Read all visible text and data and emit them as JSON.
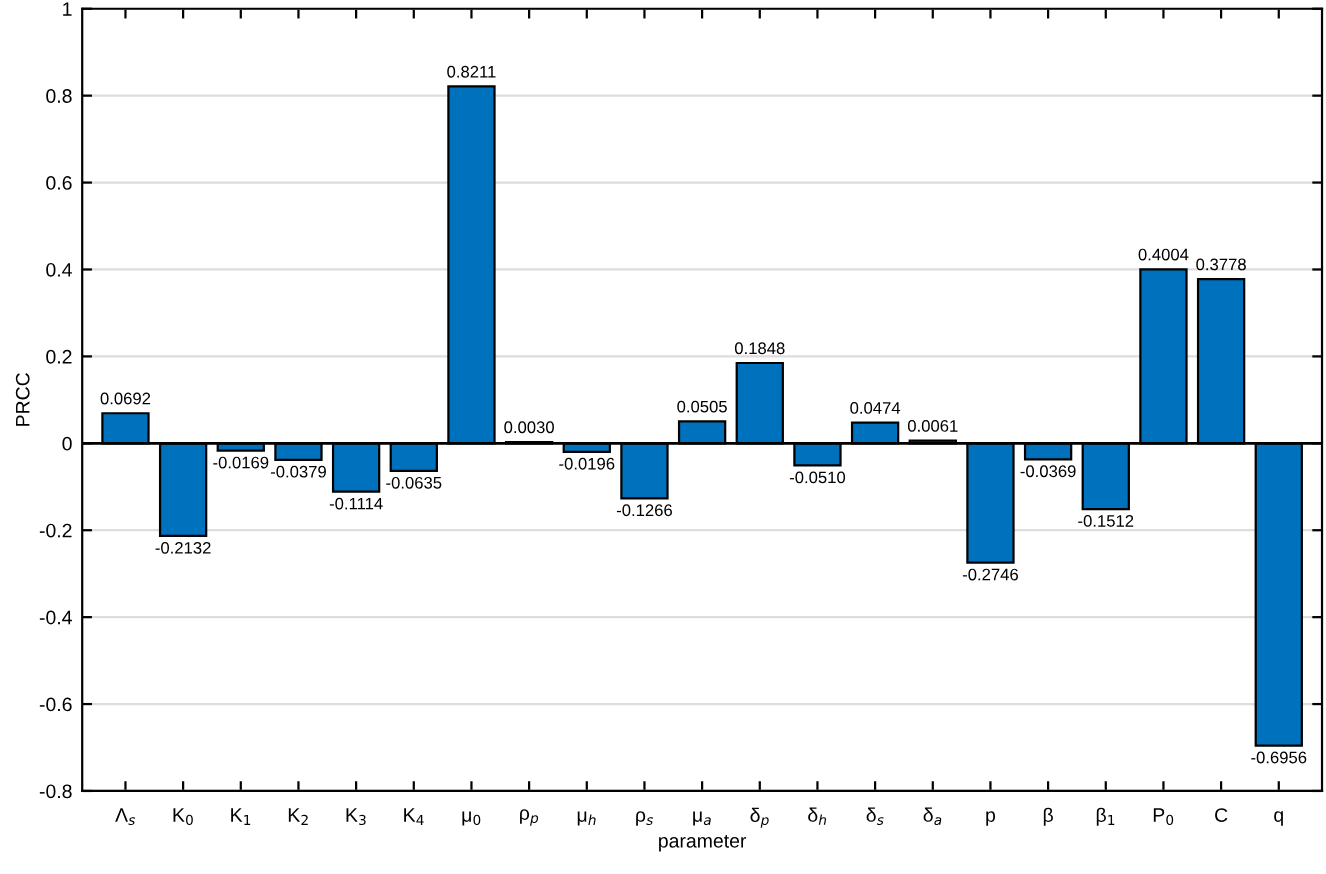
{
  "chart_data": {
    "type": "bar",
    "xlabel": "parameter",
    "ylabel": "PRCC",
    "categories": [
      "Λ$_{s}$",
      "K$_{0}$",
      "K$_{1}$",
      "K$_{2}$",
      "K$_{3}$",
      "K$_{4}$",
      "μ$_{0}$",
      "ρ$_{p}$",
      "μ$_{h}$",
      "ρ$_{s}$",
      "μ$_{a}$",
      "δ$_{p}$",
      "δ$_{h}$",
      "δ$_{s}$",
      "δ$_{a}$",
      "p",
      "β",
      "β$_{1}$",
      "P$_{0}$",
      "C",
      "q"
    ],
    "values": [
      0.0692,
      -0.2132,
      -0.0169,
      -0.0379,
      -0.1114,
      -0.0635,
      0.8211,
      0.003,
      -0.0196,
      -0.1266,
      0.0505,
      0.1848,
      -0.051,
      0.0474,
      0.0061,
      -0.2746,
      -0.0369,
      -0.1512,
      0.4004,
      0.3778,
      -0.6956
    ],
    "value_labels": [
      "0.0692",
      "-0.2132",
      "-0.0169",
      "-0.0379",
      "-0.1114",
      "-0.0635",
      "0.8211",
      "0.0030",
      "-0.0196",
      "-0.1266",
      "0.0505",
      "0.1848",
      "-0.0510",
      "0.0474",
      "0.0061",
      "-0.2746",
      "-0.0369",
      "-0.1512",
      "0.4004",
      "0.3778",
      "-0.6956"
    ],
    "color": "#0072bd",
    "ylim": [
      -0.8,
      1
    ],
    "yticks": [
      -0.8,
      -0.6,
      -0.4,
      -0.2,
      0,
      0.2,
      0.4,
      0.6,
      0.8,
      1
    ],
    "ref_lines": [
      {
        "axis": "y",
        "value": 0,
        "color": "#000000"
      }
    ],
    "grid": "y",
    "legend": false
  }
}
